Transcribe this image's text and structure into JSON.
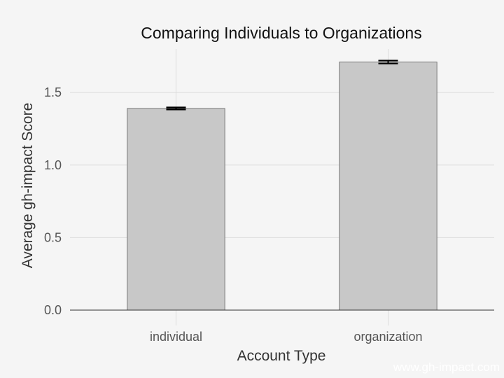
{
  "chart_data": {
    "type": "bar",
    "title": "Comparing Individuals to Organizations",
    "xlabel": "Account Type",
    "ylabel": "Average gh-impact Score",
    "categories": [
      "individual",
      "organization"
    ],
    "values": [
      1.39,
      1.71
    ],
    "error_bars": [
      0.007,
      0.01
    ],
    "ylim": [
      0,
      1.8
    ],
    "yticks": [
      0.0,
      0.5,
      1.0,
      1.5
    ],
    "ytick_labels": [
      "0.0",
      "0.5",
      "1.0",
      "1.5"
    ],
    "grid": true,
    "legend": "none",
    "colors": {
      "bar_fill": "#c8c8c8",
      "bar_stroke": "#777777",
      "grid": "#dcdcdc",
      "error_bar": "#000000",
      "background": "#f5f5f5"
    }
  },
  "watermark": "www.gh-impact.com"
}
